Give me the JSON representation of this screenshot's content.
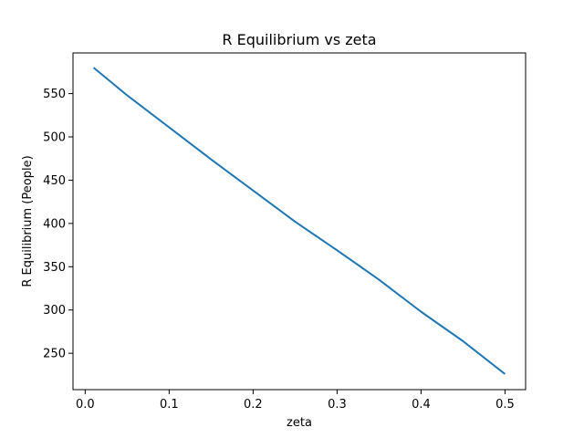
{
  "chart_data": {
    "type": "line",
    "title": "R Equilibrium vs zeta",
    "xlabel": "zeta",
    "ylabel": "R Equilibrium (People)",
    "xlim": [
      -0.0145,
      0.5245
    ],
    "ylim": [
      208,
      597
    ],
    "xticks": [
      0.0,
      0.1,
      0.2,
      0.3,
      0.4,
      0.5
    ],
    "xtick_labels": [
      "0.0",
      "0.1",
      "0.2",
      "0.3",
      "0.4",
      "0.5"
    ],
    "yticks": [
      250,
      300,
      350,
      400,
      450,
      500,
      550
    ],
    "ytick_labels": [
      "250",
      "300",
      "350",
      "400",
      "450",
      "500",
      "550"
    ],
    "grid": false,
    "legend": "none",
    "series": [
      {
        "color": "#1f77b4",
        "x": [
          0.01,
          0.05,
          0.1,
          0.15,
          0.2,
          0.25,
          0.3,
          0.35,
          0.4,
          0.45,
          0.5
        ],
        "y": [
          580,
          548,
          511,
          474,
          438,
          402,
          369,
          335,
          298,
          264,
          226
        ]
      }
    ]
  }
}
